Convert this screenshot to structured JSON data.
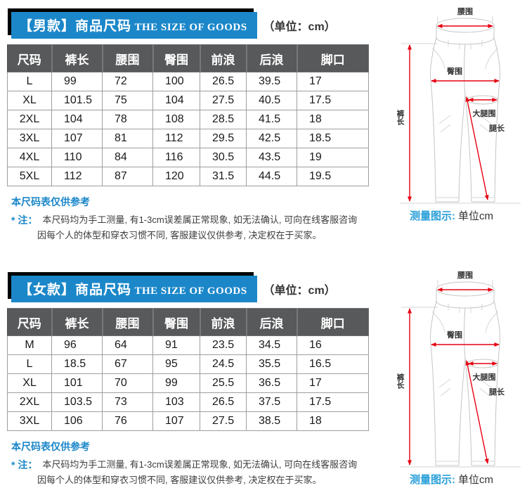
{
  "colors": {
    "title_blue": "#1b87c9",
    "table_header_gray": "#58595b",
    "note_blue": "#1b87c9",
    "caption_blue": "#2a9fd8",
    "arrow_red": "#e60012"
  },
  "sections": [
    {
      "id": "men",
      "title_cn": "【男款】商品尺码",
      "title_en": "THE SIZE OF GOODS",
      "unit_label": "（单位：cm）",
      "table": {
        "headers": [
          "尺码",
          "裤长",
          "腰围",
          "臀围",
          "前浪",
          "后浪",
          "脚口"
        ],
        "rows": [
          [
            "L",
            "99",
            "72",
            "100",
            "26.5",
            "39.5",
            "17"
          ],
          [
            "XL",
            "101.5",
            "75",
            "104",
            "27.5",
            "40.5",
            "17.5"
          ],
          [
            "2XL",
            "104",
            "78",
            "108",
            "28.5",
            "41.5",
            "18"
          ],
          [
            "3XL",
            "107",
            "81",
            "112",
            "29.5",
            "42.5",
            "18.5"
          ],
          [
            "4XL",
            "110",
            "84",
            "116",
            "30.5",
            "43.5",
            "19"
          ],
          [
            "5XL",
            "112",
            "87",
            "120",
            "31.5",
            "44.5",
            "19.5"
          ]
        ]
      },
      "note_title": "本尺码表仅供参考",
      "note_prefix": "* 注：",
      "note_line1": "本尺码均为手工测量, 有1-3cm误差属正常现象, 如无法确认, 可向在线客服咨询",
      "note_line2": "因每个人的体型和穿衣习惯不同, 客服建议仅供参考, 决定权在于买家。",
      "diagram": {
        "waist_label": "腰围",
        "hip_label": "臀围",
        "thigh_label": "大腿围",
        "length_label": "裤长",
        "leg_label": "腿长",
        "caption_prefix": "测量图示:",
        "caption_unit": "单位cm"
      }
    },
    {
      "id": "women",
      "title_cn": "【女款】商品尺码",
      "title_en": "THE SIZE OF GOODS",
      "unit_label": "（单位：cm）",
      "table": {
        "headers": [
          "尺码",
          "裤长",
          "腰围",
          "臀围",
          "前浪",
          "后浪",
          "脚口"
        ],
        "rows": [
          [
            "M",
            "96",
            "64",
            "91",
            "23.5",
            "34.5",
            "16"
          ],
          [
            "L",
            "18.5",
            "67",
            "95",
            "24.5",
            "35.5",
            "16.5"
          ],
          [
            "XL",
            "101",
            "70",
            "99",
            "25.5",
            "36.5",
            "17"
          ],
          [
            "2XL",
            "103.5",
            "73",
            "103",
            "26.5",
            "37.5",
            "17.5"
          ],
          [
            "3XL",
            "106",
            "76",
            "107",
            "27.5",
            "38.5",
            "18"
          ]
        ]
      },
      "note_title": "本尺码表仅供参考",
      "note_prefix": "* 注：",
      "note_line1": "本尺码均为手工测量, 有1-3cm误差属正常现象, 如无法确认, 可向在线客服咨询",
      "note_line2": "因每个人的体型和穿衣习惯不同, 客服建议仅供参考, 决定权在于买家。",
      "diagram": {
        "waist_label": "腰围",
        "hip_label": "臀围",
        "thigh_label": "大腿围",
        "length_label": "裤长",
        "leg_label": "腿长",
        "caption_prefix": "测量图示:",
        "caption_unit": "单位cm"
      }
    }
  ]
}
